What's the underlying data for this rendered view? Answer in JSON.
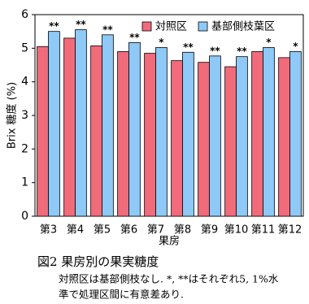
{
  "chart_data": {
    "type": "bar",
    "categories": [
      "第3",
      "第4",
      "第5",
      "第6",
      "第7",
      "第8",
      "第9",
      "第10",
      "第11",
      "第12"
    ],
    "series": [
      {
        "name": "対照区",
        "color": "#f26b7b",
        "values": [
          5.05,
          5.3,
          5.07,
          4.9,
          4.85,
          4.63,
          4.58,
          4.45,
          4.9,
          4.72
        ]
      },
      {
        "name": "基部側枝葉区",
        "color": "#8ec9f7",
        "values": [
          5.5,
          5.55,
          5.4,
          5.17,
          5.02,
          4.88,
          4.77,
          4.75,
          5.02,
          4.9
        ]
      }
    ],
    "annotations": [
      "**",
      "**",
      "**",
      "**",
      "*",
      "**",
      "**",
      "**",
      "*",
      "*"
    ],
    "ylim": [
      0,
      6
    ],
    "yticks": [
      0,
      1,
      2,
      3,
      4,
      5,
      6
    ],
    "ylabel": "Brix 糖度 (%)",
    "xlabel": "果房",
    "legend": "top-right",
    "grid": false
  },
  "caption": {
    "title": "図2 果房別の果実糖度",
    "lines": [
      "対照区は基部側枝なし. *, **はそれぞれ5, 1%水",
      "準で処理区間に有意差あり."
    ]
  }
}
